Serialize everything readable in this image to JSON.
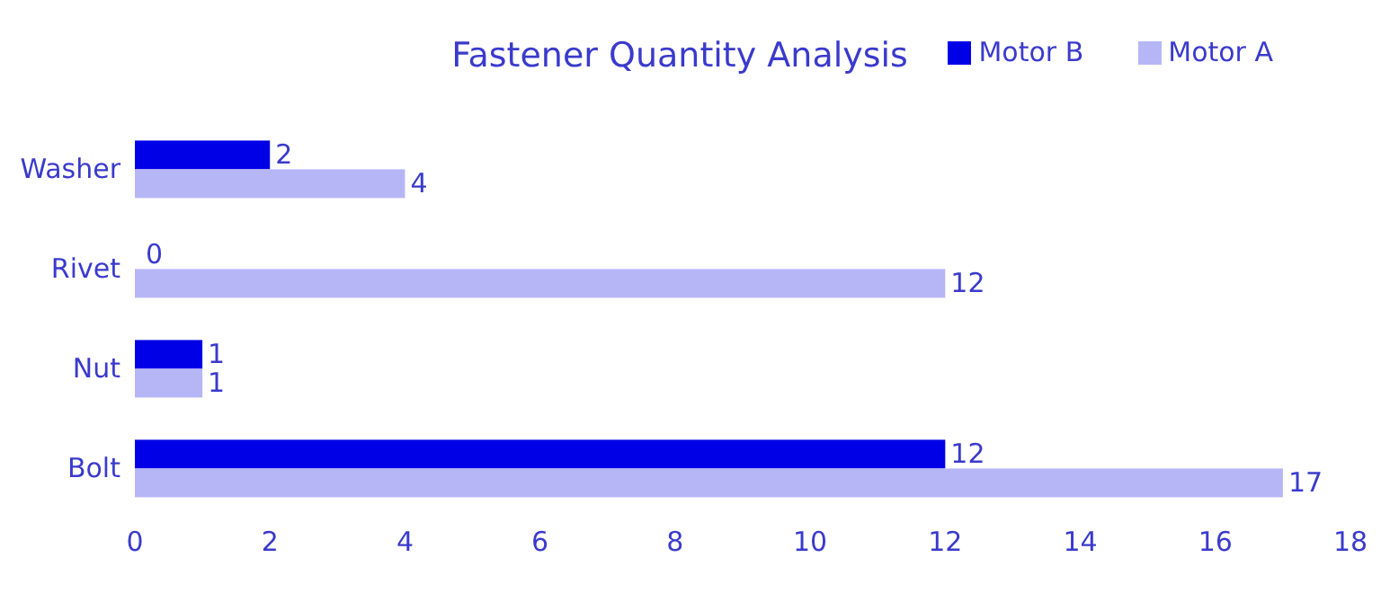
{
  "chart_data": {
    "type": "bar",
    "orientation": "horizontal",
    "title": "Fastener Quantity Analysis",
    "categories": [
      "Washer",
      "Rivet",
      "Nut",
      "Bolt"
    ],
    "series": [
      {
        "name": "Motor B",
        "color": "#0000e6",
        "values": [
          2,
          0,
          1,
          12
        ]
      },
      {
        "name": "Motor A",
        "color": "#b6b6f6",
        "values": [
          4,
          12,
          1,
          17
        ]
      }
    ],
    "xlim": [
      0,
      18
    ],
    "xticks": [
      0,
      2,
      4,
      6,
      8,
      10,
      12,
      14,
      16,
      18
    ],
    "data_labels": true,
    "legend": "top right",
    "grid": false
  }
}
